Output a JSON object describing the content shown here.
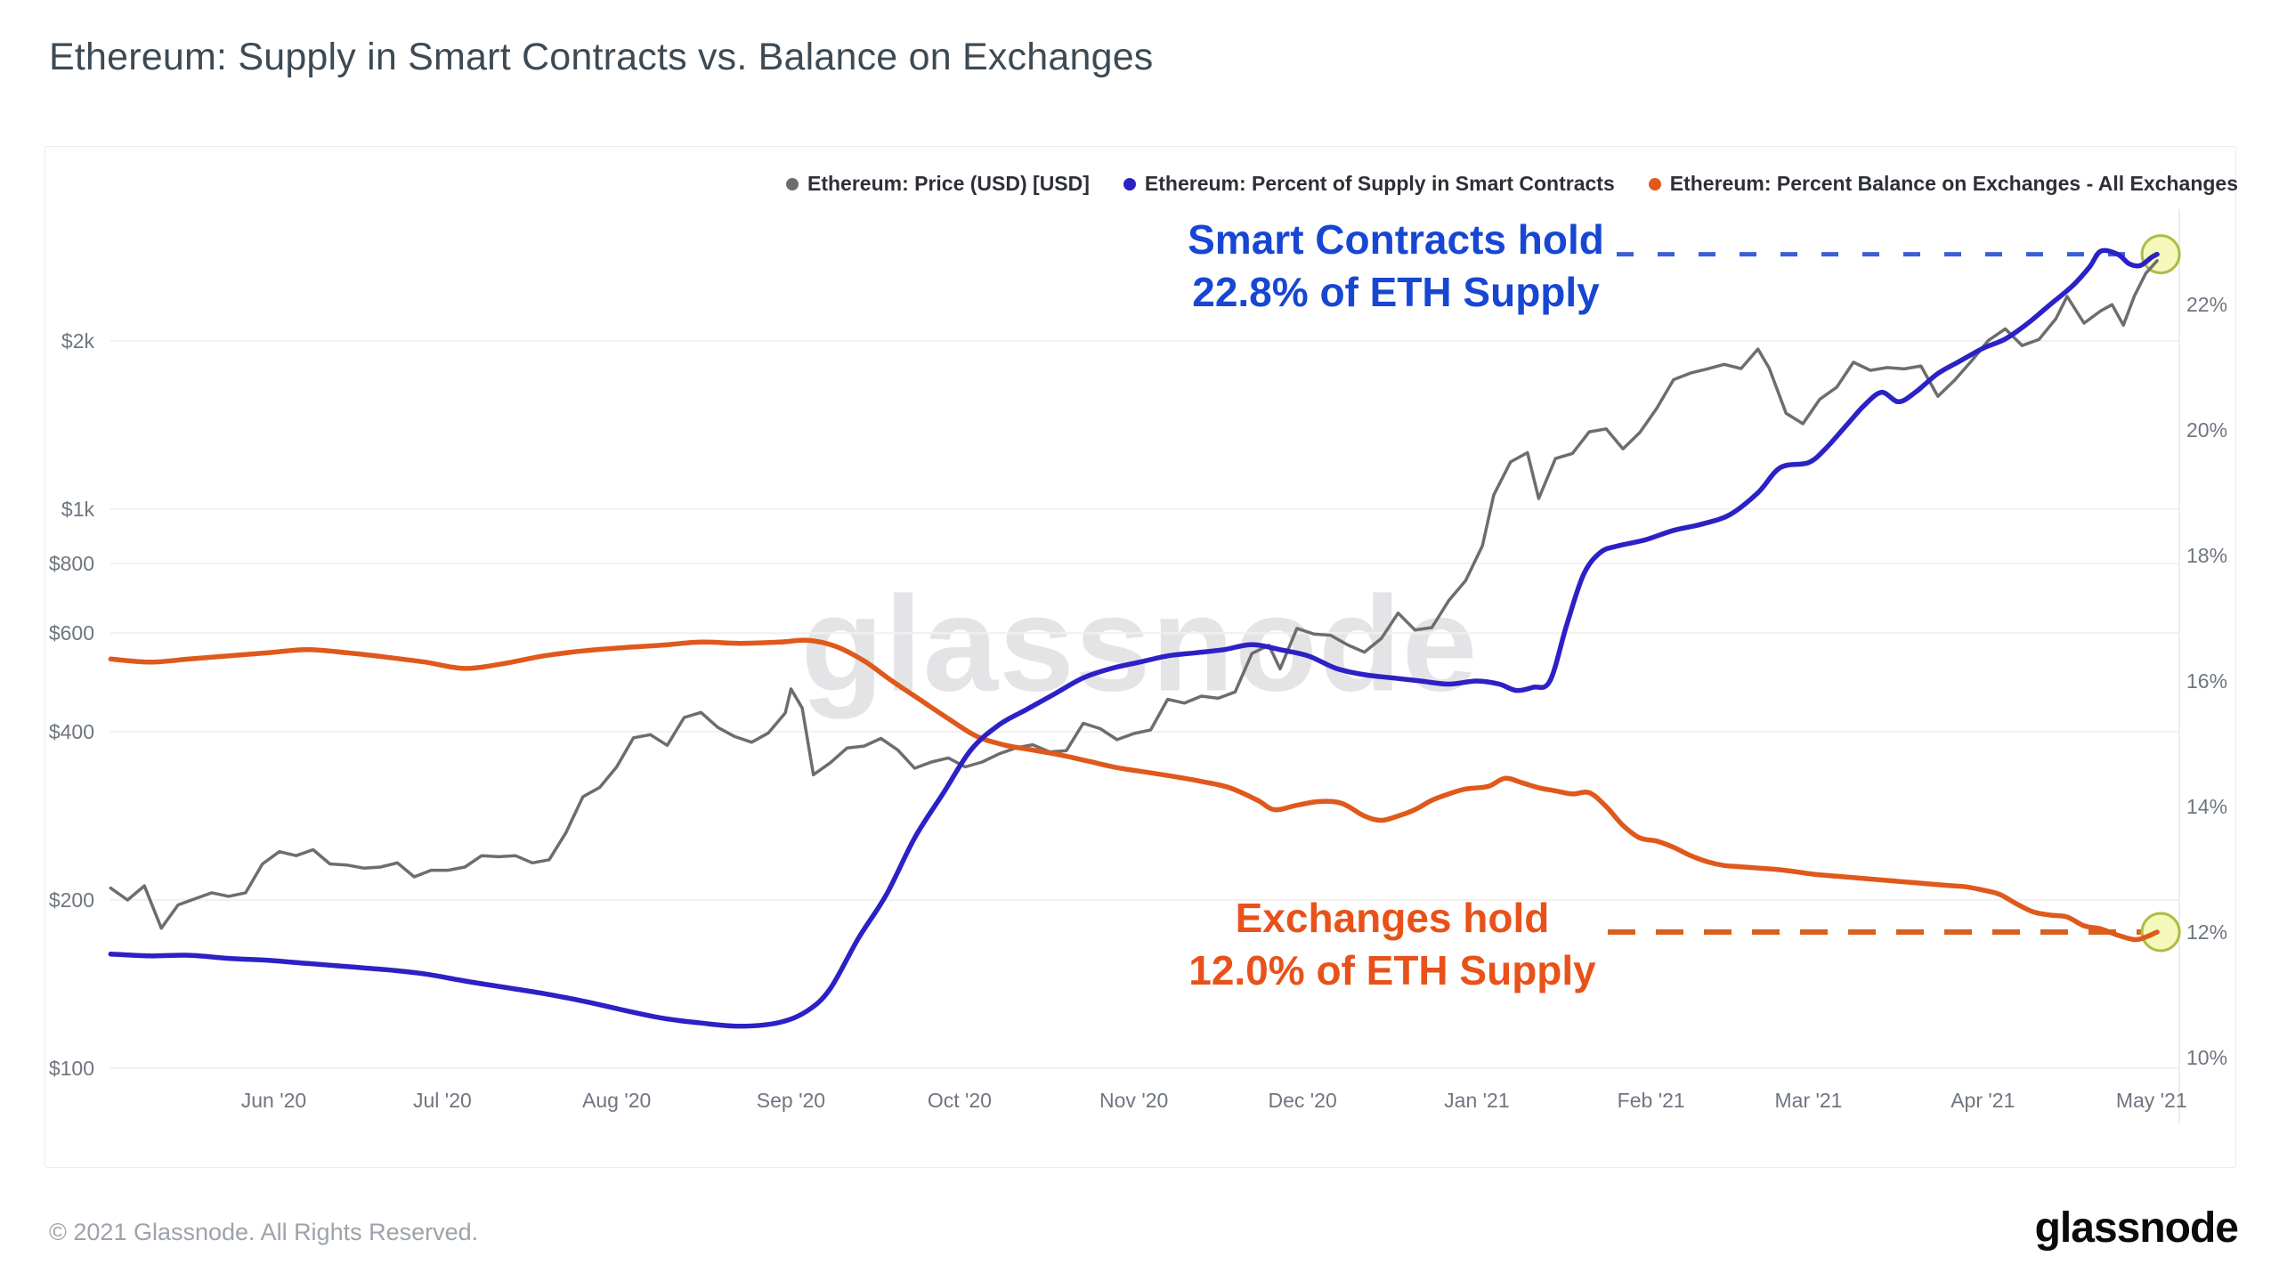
{
  "page": {
    "title": "Ethereum: Supply in Smart Contracts vs. Balance on Exchanges"
  },
  "watermark": "glassnode",
  "footer": {
    "copyright": "© 2021 Glassnode. All Rights Reserved.",
    "brand": "glassnode"
  },
  "legend": [
    {
      "label": "Ethereum: Price (USD) [USD]",
      "color": "#6d6d6d"
    },
    {
      "label": "Ethereum: Percent of Supply in Smart Contracts",
      "color": "#2b21c5"
    },
    {
      "label": "Ethereum: Percent Balance on Exchanges - All Exchanges",
      "color": "#df591c"
    }
  ],
  "annotations": {
    "smart_contracts": {
      "line1": "Smart Contracts hold",
      "line2": "22.8% of ETH Supply",
      "value": 22.8,
      "color": "#1747d2",
      "dash_color": "#3c5ed6"
    },
    "exchanges": {
      "line1": "Exchanges hold",
      "line2": "12.0% of ETH Supply",
      "value": 12.0,
      "color": "#e8521a",
      "dash_color": "#d8611f"
    }
  },
  "chart_data": {
    "type": "line",
    "title": "Ethereum: Supply in Smart Contracts vs. Balance on Exchanges",
    "grid": "horizontal-faint",
    "legend_position": "top-right",
    "x_axis": {
      "start": "2020-05-02",
      "end": "2021-05-05",
      "ticks": [
        {
          "label": "Jun '20",
          "date": "2020-06-01"
        },
        {
          "label": "Jul '20",
          "date": "2020-07-01"
        },
        {
          "label": "Aug '20",
          "date": "2020-08-01"
        },
        {
          "label": "Sep '20",
          "date": "2020-09-01"
        },
        {
          "label": "Oct '20",
          "date": "2020-10-01"
        },
        {
          "label": "Nov '20",
          "date": "2020-11-01"
        },
        {
          "label": "Dec '20",
          "date": "2020-12-01"
        },
        {
          "label": "Jan '21",
          "date": "2021-01-01"
        },
        {
          "label": "Feb '21",
          "date": "2021-02-01"
        },
        {
          "label": "Mar '21",
          "date": "2021-03-01"
        },
        {
          "label": "Apr '21",
          "date": "2021-04-01"
        },
        {
          "label": "May '21",
          "date": "2021-05-01"
        }
      ]
    },
    "left_axis": {
      "scale": "log",
      "unit": "USD",
      "ticks": [
        {
          "label": "$100",
          "value": 100
        },
        {
          "label": "$200",
          "value": 200
        },
        {
          "label": "$400",
          "value": 400
        },
        {
          "label": "$600",
          "value": 600
        },
        {
          "label": "$800",
          "value": 800
        },
        {
          "label": "$1k",
          "value": 1000
        },
        {
          "label": "$2k",
          "value": 2000
        }
      ]
    },
    "right_axis": {
      "scale": "linear",
      "unit": "%",
      "range": [
        10,
        23
      ],
      "ticks": [
        {
          "label": "10%",
          "value": 10
        },
        {
          "label": "12%",
          "value": 12
        },
        {
          "label": "14%",
          "value": 14
        },
        {
          "label": "16%",
          "value": 16
        },
        {
          "label": "18%",
          "value": 18
        },
        {
          "label": "20%",
          "value": 20
        },
        {
          "label": "22%",
          "value": 22
        }
      ]
    },
    "end_marker_style": {
      "fill": "#f4f9bb",
      "stroke": "#aebc45"
    },
    "series": [
      {
        "name": "Ethereum: Price (USD) [USD]",
        "axis": "left",
        "color": "#6d6d6d",
        "width": 3.5,
        "smooth": false,
        "end_marker": false,
        "dates": [
          "2020-05-03",
          "2020-05-06",
          "2020-05-09",
          "2020-05-12",
          "2020-05-15",
          "2020-05-18",
          "2020-05-21",
          "2020-05-24",
          "2020-05-27",
          "2020-05-30",
          "2020-06-02",
          "2020-06-05",
          "2020-06-08",
          "2020-06-11",
          "2020-06-14",
          "2020-06-17",
          "2020-06-20",
          "2020-06-23",
          "2020-06-26",
          "2020-06-29",
          "2020-07-02",
          "2020-07-05",
          "2020-07-08",
          "2020-07-11",
          "2020-07-14",
          "2020-07-17",
          "2020-07-20",
          "2020-07-23",
          "2020-07-26",
          "2020-07-29",
          "2020-08-01",
          "2020-08-04",
          "2020-08-07",
          "2020-08-10",
          "2020-08-13",
          "2020-08-16",
          "2020-08-19",
          "2020-08-22",
          "2020-08-25",
          "2020-08-28",
          "2020-08-31",
          "2020-09-01",
          "2020-09-03",
          "2020-09-05",
          "2020-09-08",
          "2020-09-11",
          "2020-09-14",
          "2020-09-17",
          "2020-09-20",
          "2020-09-23",
          "2020-09-26",
          "2020-09-29",
          "2020-10-02",
          "2020-10-05",
          "2020-10-08",
          "2020-10-11",
          "2020-10-14",
          "2020-10-17",
          "2020-10-20",
          "2020-10-23",
          "2020-10-26",
          "2020-10-29",
          "2020-11-01",
          "2020-11-04",
          "2020-11-07",
          "2020-11-10",
          "2020-11-13",
          "2020-11-16",
          "2020-11-19",
          "2020-11-22",
          "2020-11-25",
          "2020-11-27",
          "2020-11-30",
          "2020-12-03",
          "2020-12-06",
          "2020-12-09",
          "2020-12-12",
          "2020-12-15",
          "2020-12-18",
          "2020-12-21",
          "2020-12-24",
          "2020-12-27",
          "2020-12-30",
          "2021-01-02",
          "2021-01-04",
          "2021-01-07",
          "2021-01-10",
          "2021-01-12",
          "2021-01-15",
          "2021-01-18",
          "2021-01-21",
          "2021-01-24",
          "2021-01-27",
          "2021-01-30",
          "2021-02-02",
          "2021-02-05",
          "2021-02-08",
          "2021-02-11",
          "2021-02-14",
          "2021-02-17",
          "2021-02-20",
          "2021-02-22",
          "2021-02-25",
          "2021-02-28",
          "2021-03-03",
          "2021-03-06",
          "2021-03-09",
          "2021-03-12",
          "2021-03-15",
          "2021-03-18",
          "2021-03-21",
          "2021-03-24",
          "2021-03-27",
          "2021-03-30",
          "2021-04-02",
          "2021-04-05",
          "2021-04-08",
          "2021-04-11",
          "2021-04-14",
          "2021-04-16",
          "2021-04-19",
          "2021-04-22",
          "2021-04-24",
          "2021-04-26",
          "2021-04-28",
          "2021-04-30",
          "2021-05-02"
        ],
        "values": [
          210,
          200,
          212,
          178,
          196,
          201,
          206,
          203,
          206,
          232,
          244,
          240,
          246,
          232,
          231,
          228,
          229,
          233,
          220,
          226,
          226,
          229,
          240,
          239,
          240,
          233,
          236,
          264,
          306,
          318,
          346,
          390,
          395,
          378,
          424,
          433,
          407,
          392,
          383,
          398,
          432,
          477,
          441,
          335,
          352,
          374,
          377,
          389,
          371,
          344,
          353,
          359,
          346,
          353,
          365,
          374,
          379,
          368,
          370,
          414,
          405,
          387,
          397,
          403,
          457,
          450,
          463,
          459,
          471,
          552,
          571,
          518,
          612,
          598,
          595,
          572,
          555,
          587,
          652,
          608,
          614,
          686,
          745,
          860,
          1060,
          1215,
          1262,
          1045,
          1232,
          1258,
          1375,
          1392,
          1282,
          1372,
          1515,
          1705,
          1752,
          1782,
          1816,
          1784,
          1934,
          1788,
          1484,
          1422,
          1572,
          1652,
          1832,
          1772,
          1792,
          1782,
          1804,
          1592,
          1702,
          1842,
          2004,
          2102,
          1962,
          2012,
          2192,
          2402,
          2152,
          2264,
          2322,
          2134,
          2412,
          2642,
          2782
        ]
      },
      {
        "name": "Ethereum: Percent of Supply in Smart Contracts",
        "axis": "right",
        "color": "#2b21c5",
        "width": 5.5,
        "smooth": true,
        "end_marker": true,
        "dates": [
          "2020-05-03",
          "2020-05-10",
          "2020-05-17",
          "2020-05-24",
          "2020-05-31",
          "2020-06-07",
          "2020-06-14",
          "2020-06-21",
          "2020-06-28",
          "2020-07-05",
          "2020-07-12",
          "2020-07-19",
          "2020-07-26",
          "2020-08-02",
          "2020-08-09",
          "2020-08-16",
          "2020-08-23",
          "2020-08-30",
          "2020-09-04",
          "2020-09-08",
          "2020-09-13",
          "2020-09-18",
          "2020-09-23",
          "2020-09-28",
          "2020-10-03",
          "2020-10-08",
          "2020-10-13",
          "2020-10-18",
          "2020-10-23",
          "2020-10-28",
          "2020-11-02",
          "2020-11-07",
          "2020-11-12",
          "2020-11-17",
          "2020-11-22",
          "2020-11-27",
          "2020-12-02",
          "2020-12-07",
          "2020-12-12",
          "2020-12-17",
          "2020-12-22",
          "2020-12-27",
          "2021-01-01",
          "2021-01-05",
          "2021-01-08",
          "2021-01-11",
          "2021-01-14",
          "2021-01-17",
          "2021-01-20",
          "2021-01-23",
          "2021-01-26",
          "2021-01-31",
          "2021-02-05",
          "2021-02-10",
          "2021-02-15",
          "2021-02-20",
          "2021-02-24",
          "2021-03-01",
          "2021-03-04",
          "2021-03-08",
          "2021-03-11",
          "2021-03-14",
          "2021-03-17",
          "2021-03-20",
          "2021-03-24",
          "2021-03-28",
          "2021-04-01",
          "2021-04-05",
          "2021-04-09",
          "2021-04-13",
          "2021-04-17",
          "2021-04-20",
          "2021-04-22",
          "2021-04-25",
          "2021-04-27",
          "2021-04-29",
          "2021-05-01",
          "2021-05-02"
        ],
        "values": [
          11.65,
          11.62,
          11.63,
          11.58,
          11.55,
          11.5,
          11.45,
          11.4,
          11.33,
          11.22,
          11.12,
          11.02,
          10.9,
          10.76,
          10.63,
          10.55,
          10.5,
          10.56,
          10.75,
          11.1,
          11.9,
          12.6,
          13.5,
          14.2,
          14.9,
          15.3,
          15.55,
          15.8,
          16.05,
          16.2,
          16.3,
          16.4,
          16.45,
          16.5,
          16.58,
          16.5,
          16.4,
          16.2,
          16.1,
          16.05,
          16.0,
          15.95,
          16.0,
          15.95,
          15.85,
          15.9,
          16.0,
          16.9,
          17.7,
          18.05,
          18.15,
          18.25,
          18.4,
          18.5,
          18.65,
          19.0,
          19.4,
          19.48,
          19.7,
          20.1,
          20.4,
          20.6,
          20.45,
          20.6,
          20.9,
          21.1,
          21.3,
          21.45,
          21.7,
          22.0,
          22.3,
          22.6,
          22.85,
          22.8,
          22.65,
          22.62,
          22.75,
          22.8
        ]
      },
      {
        "name": "Ethereum: Percent Balance on Exchanges - All Exchanges",
        "axis": "right",
        "color": "#df591c",
        "width": 5.5,
        "smooth": true,
        "end_marker": true,
        "dates": [
          "2020-05-03",
          "2020-05-10",
          "2020-05-17",
          "2020-05-24",
          "2020-05-31",
          "2020-06-07",
          "2020-06-14",
          "2020-06-21",
          "2020-06-28",
          "2020-07-05",
          "2020-07-12",
          "2020-07-19",
          "2020-07-26",
          "2020-08-02",
          "2020-08-09",
          "2020-08-16",
          "2020-08-23",
          "2020-08-30",
          "2020-09-04",
          "2020-09-09",
          "2020-09-14",
          "2020-09-19",
          "2020-09-24",
          "2020-09-29",
          "2020-10-04",
          "2020-10-09",
          "2020-10-14",
          "2020-10-19",
          "2020-10-24",
          "2020-10-29",
          "2020-11-03",
          "2020-11-08",
          "2020-11-13",
          "2020-11-18",
          "2020-11-23",
          "2020-11-26",
          "2020-11-30",
          "2020-12-04",
          "2020-12-08",
          "2020-12-12",
          "2020-12-15",
          "2020-12-18",
          "2020-12-21",
          "2020-12-24",
          "2020-12-27",
          "2020-12-30",
          "2021-01-03",
          "2021-01-06",
          "2021-01-09",
          "2021-01-12",
          "2021-01-15",
          "2021-01-18",
          "2021-01-21",
          "2021-01-24",
          "2021-01-27",
          "2021-01-30",
          "2021-02-02",
          "2021-02-05",
          "2021-02-08",
          "2021-02-11",
          "2021-02-14",
          "2021-02-17",
          "2021-02-20",
          "2021-02-23",
          "2021-02-26",
          "2021-03-02",
          "2021-03-06",
          "2021-03-10",
          "2021-03-14",
          "2021-03-18",
          "2021-03-22",
          "2021-03-26",
          "2021-03-29",
          "2021-04-01",
          "2021-04-04",
          "2021-04-07",
          "2021-04-10",
          "2021-04-13",
          "2021-04-16",
          "2021-04-19",
          "2021-04-22",
          "2021-04-25",
          "2021-04-28",
          "2021-04-30",
          "2021-05-02"
        ],
        "values": [
          16.35,
          16.3,
          16.35,
          16.4,
          16.45,
          16.5,
          16.45,
          16.38,
          16.3,
          16.2,
          16.28,
          16.4,
          16.48,
          16.53,
          16.57,
          16.62,
          16.6,
          16.62,
          16.65,
          16.55,
          16.32,
          16.0,
          15.7,
          15.4,
          15.12,
          14.98,
          14.9,
          14.82,
          14.72,
          14.62,
          14.55,
          14.48,
          14.4,
          14.3,
          14.1,
          13.95,
          14.02,
          14.08,
          14.05,
          13.85,
          13.78,
          13.85,
          13.95,
          14.1,
          14.2,
          14.28,
          14.32,
          14.45,
          14.38,
          14.3,
          14.25,
          14.2,
          14.22,
          14.0,
          13.7,
          13.5,
          13.45,
          13.35,
          13.22,
          13.12,
          13.06,
          13.04,
          13.02,
          13.0,
          12.97,
          12.92,
          12.89,
          12.86,
          12.83,
          12.8,
          12.77,
          12.74,
          12.72,
          12.67,
          12.6,
          12.45,
          12.32,
          12.27,
          12.24,
          12.1,
          12.05,
          11.95,
          11.88,
          11.92,
          12.0
        ]
      }
    ]
  }
}
